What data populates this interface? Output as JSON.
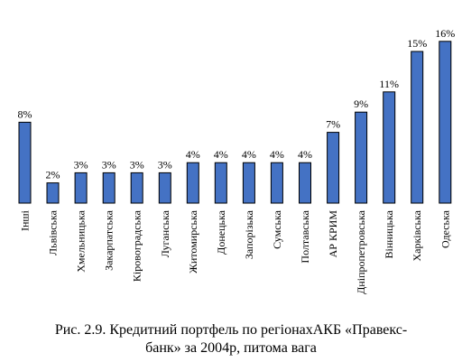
{
  "caption": {
    "line1": "Рис. 2.9. Кредитний портфель по регіонахАКБ «Правекс-",
    "line2": "банк» за 2004р, питома вага"
  },
  "colors": {
    "bar_fill": "#4472c4",
    "bar_stroke": "#000000",
    "text": "#000000",
    "background": "#ffffff"
  },
  "chart_data": {
    "type": "bar",
    "title": "",
    "xlabel": "",
    "ylabel": "",
    "ylim": [
      0,
      16
    ],
    "grid": false,
    "legend": "none",
    "categories": [
      "Інші",
      "Львівська",
      "Хмельницька",
      "Закарпатська",
      "Кіровоградська",
      "Луганська",
      "Житомирська",
      "Донецька",
      "Запорізька",
      "Сумська",
      "Полтавська",
      "АР КРИМ",
      "Дніпропетровська",
      "Вінницька",
      "Харківська",
      "Одеська"
    ],
    "values": [
      8,
      2,
      3,
      3,
      3,
      3,
      4,
      4,
      4,
      4,
      4,
      7,
      9,
      11,
      15,
      16
    ],
    "data_labels": [
      "8%",
      "2%",
      "3%",
      "3%",
      "3%",
      "3%",
      "4%",
      "4%",
      "4%",
      "4%",
      "4%",
      "7%",
      "9%",
      "11%",
      "15%",
      "16%"
    ]
  }
}
